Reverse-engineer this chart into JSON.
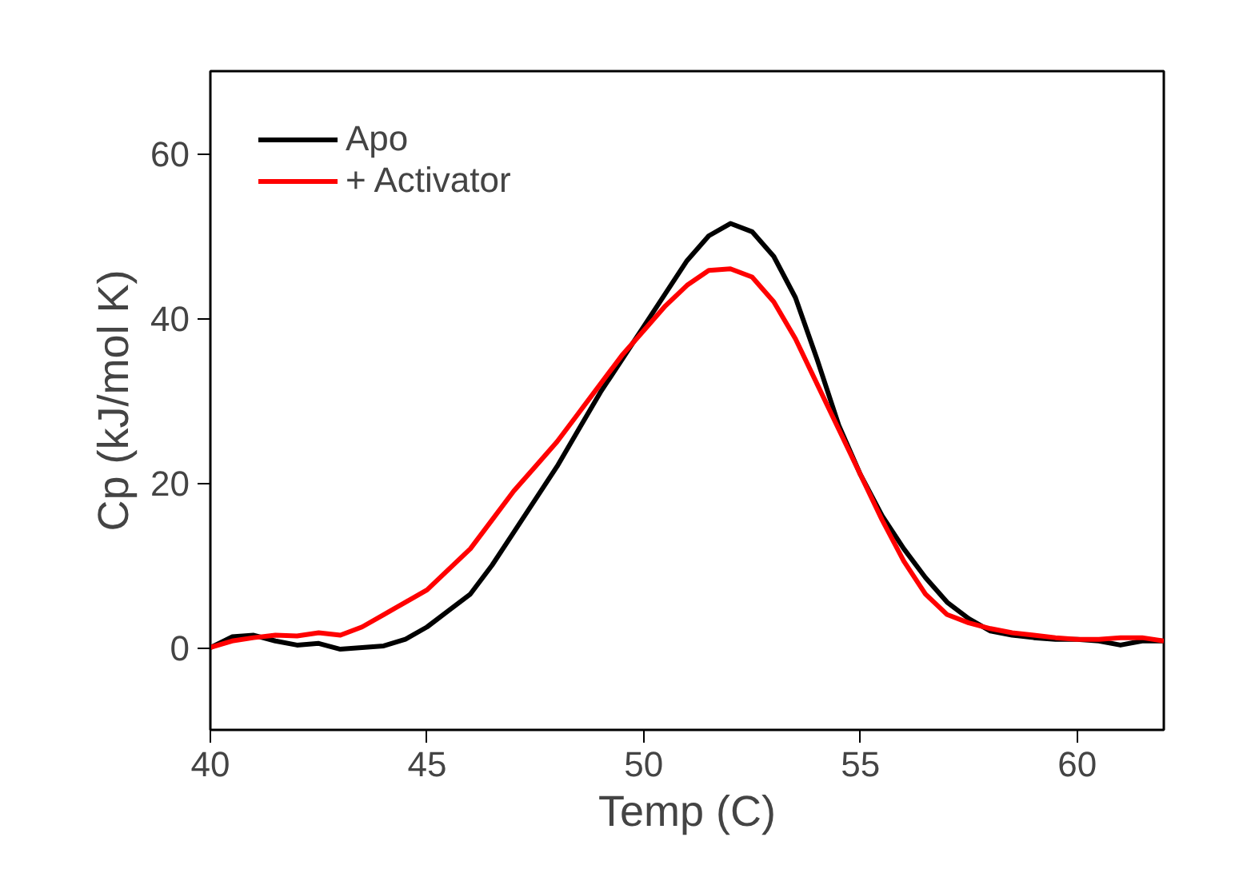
{
  "chart_data": {
    "type": "line",
    "xlabel": "Temp (C)",
    "ylabel": "Cp (kJ/mol K)",
    "xlim": [
      40,
      62
    ],
    "ylim": [
      -10,
      70
    ],
    "xticks": [
      40,
      45,
      50,
      55,
      60
    ],
    "yticks": [
      0,
      20,
      40,
      60
    ],
    "grid": false,
    "legend": "top left",
    "line_style": "solid",
    "marker": "none",
    "x": [
      40,
      40.5,
      41,
      41.5,
      42,
      42.5,
      43,
      43.5,
      44,
      44.5,
      45,
      45.5,
      46,
      46.5,
      47,
      47.5,
      48,
      48.5,
      49,
      49.5,
      50,
      50.5,
      51,
      51.5,
      52,
      52.5,
      53,
      53.5,
      54,
      54.5,
      55,
      55.5,
      56,
      56.5,
      57,
      57.5,
      58,
      58.5,
      59,
      59.5,
      60,
      60.5,
      61,
      61.5,
      62
    ],
    "series": [
      {
        "name": "Apo",
        "color": "#000000",
        "values": [
          0,
          1.3,
          1.5,
          0.8,
          0.3,
          0.5,
          -0.2,
          0,
          0.2,
          1,
          2.5,
          4.5,
          6.5,
          10,
          14,
          18,
          22,
          26.5,
          31,
          35,
          39,
          43,
          47,
          50,
          51.5,
          50.5,
          47.5,
          42.5,
          35,
          27,
          21,
          16,
          12,
          8.5,
          5.5,
          3.5,
          2,
          1.5,
          1.2,
          1,
          1,
          0.8,
          0.3,
          0.8,
          0.8
        ]
      },
      {
        "name": "+ Activator",
        "color": "#ff0000",
        "values": [
          0,
          0.8,
          1.2,
          1.5,
          1.4,
          1.8,
          1.5,
          2.5,
          4,
          5.5,
          7,
          9.5,
          12,
          15.5,
          19,
          22,
          25,
          28.5,
          32,
          35.5,
          38.5,
          41.5,
          44,
          45.8,
          46,
          45,
          42,
          37.5,
          32,
          26.5,
          21,
          15.5,
          10.5,
          6.5,
          4,
          3,
          2.3,
          1.8,
          1.5,
          1.2,
          1,
          1,
          1.2,
          1.2,
          0.8
        ]
      }
    ]
  }
}
